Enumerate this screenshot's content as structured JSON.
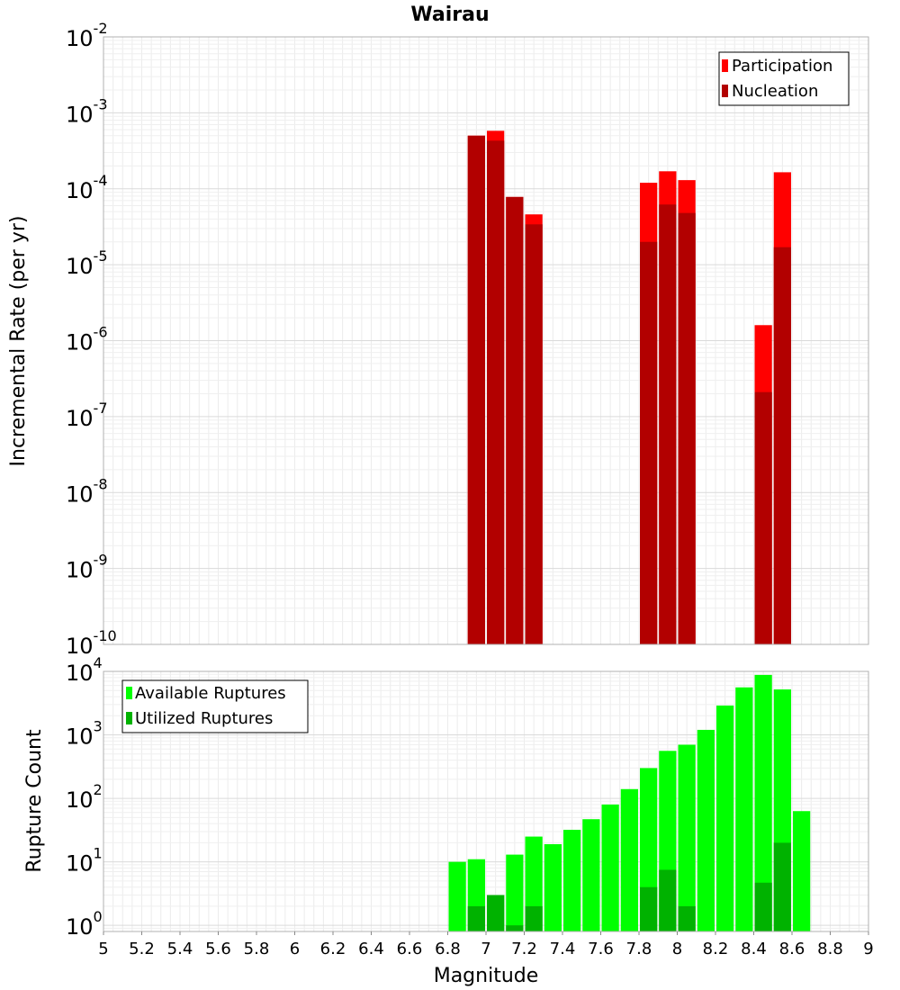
{
  "chart_data": [
    {
      "type": "bar",
      "title": "Wairau",
      "xlabel": "",
      "ylabel": "Incremental Rate (per yr)",
      "y_scale": "log",
      "ylim": [
        1e-10,
        0.01
      ],
      "y_tick_exponents": [
        -10,
        -9,
        -8,
        -7,
        -6,
        -5,
        -4,
        -3,
        -2
      ],
      "xlim": [
        5,
        9
      ],
      "bin_width": 0.1,
      "grid": true,
      "legend_position": "top-right",
      "series": [
        {
          "name": "Participation",
          "color": "#ff0000",
          "points": [
            {
              "x": 6.95,
              "y": 0.0005
            },
            {
              "x": 7.05,
              "y": 0.00058
            },
            {
              "x": 7.15,
              "y": 7.8e-05
            },
            {
              "x": 7.25,
              "y": 4.6e-05
            },
            {
              "x": 7.85,
              "y": 0.00012
            },
            {
              "x": 7.95,
              "y": 0.00017
            },
            {
              "x": 8.05,
              "y": 0.00013
            },
            {
              "x": 8.45,
              "y": 1.6e-06
            },
            {
              "x": 8.55,
              "y": 0.000165
            }
          ]
        },
        {
          "name": "Nucleation",
          "color": "#b20000",
          "points": [
            {
              "x": 6.95,
              "y": 0.0005
            },
            {
              "x": 7.05,
              "y": 0.00043
            },
            {
              "x": 7.15,
              "y": 7.8e-05
            },
            {
              "x": 7.25,
              "y": 3.4e-05
            },
            {
              "x": 7.85,
              "y": 2e-05
            },
            {
              "x": 7.95,
              "y": 6.2e-05
            },
            {
              "x": 8.05,
              "y": 4.8e-05
            },
            {
              "x": 8.45,
              "y": 2.1e-07
            },
            {
              "x": 8.55,
              "y": 1.7e-05
            }
          ]
        }
      ]
    },
    {
      "type": "bar",
      "title": "",
      "xlabel": "Magnitude",
      "ylabel": "Rupture Count",
      "y_scale": "log",
      "ylim": [
        0.8,
        10000
      ],
      "y_tick_exponents": [
        0,
        1,
        2,
        3,
        4
      ],
      "xlim": [
        5,
        9
      ],
      "x_ticks": [
        "5",
        "5.2",
        "5.4",
        "5.6",
        "5.8",
        "6",
        "6.2",
        "6.4",
        "6.6",
        "6.8",
        "7",
        "7.2",
        "7.4",
        "7.6",
        "7.8",
        "8",
        "8.2",
        "8.4",
        "8.6",
        "8.8",
        "9"
      ],
      "bin_width": 0.1,
      "grid": true,
      "legend_position": "top-left",
      "series": [
        {
          "name": "Available Ruptures",
          "color": "#00ff00",
          "points": [
            {
              "x": 6.85,
              "y": 10
            },
            {
              "x": 6.95,
              "y": 11
            },
            {
              "x": 7.05,
              "y": 3
            },
            {
              "x": 7.15,
              "y": 13
            },
            {
              "x": 7.25,
              "y": 25
            },
            {
              "x": 7.35,
              "y": 19
            },
            {
              "x": 7.45,
              "y": 32
            },
            {
              "x": 7.55,
              "y": 47
            },
            {
              "x": 7.65,
              "y": 80
            },
            {
              "x": 7.75,
              "y": 140
            },
            {
              "x": 7.85,
              "y": 300
            },
            {
              "x": 7.95,
              "y": 560
            },
            {
              "x": 8.05,
              "y": 700
            },
            {
              "x": 8.15,
              "y": 1200
            },
            {
              "x": 8.25,
              "y": 2900
            },
            {
              "x": 8.35,
              "y": 5600
            },
            {
              "x": 8.45,
              "y": 8800
            },
            {
              "x": 8.55,
              "y": 5200
            },
            {
              "x": 8.65,
              "y": 63
            }
          ]
        },
        {
          "name": "Utilized Ruptures",
          "color": "#00b200",
          "points": [
            {
              "x": 6.95,
              "y": 2
            },
            {
              "x": 7.05,
              "y": 3
            },
            {
              "x": 7.15,
              "y": 1
            },
            {
              "x": 7.25,
              "y": 2
            },
            {
              "x": 7.85,
              "y": 4
            },
            {
              "x": 7.95,
              "y": 7.5
            },
            {
              "x": 8.05,
              "y": 2
            },
            {
              "x": 8.45,
              "y": 4.7
            },
            {
              "x": 8.55,
              "y": 20
            }
          ]
        }
      ]
    }
  ]
}
